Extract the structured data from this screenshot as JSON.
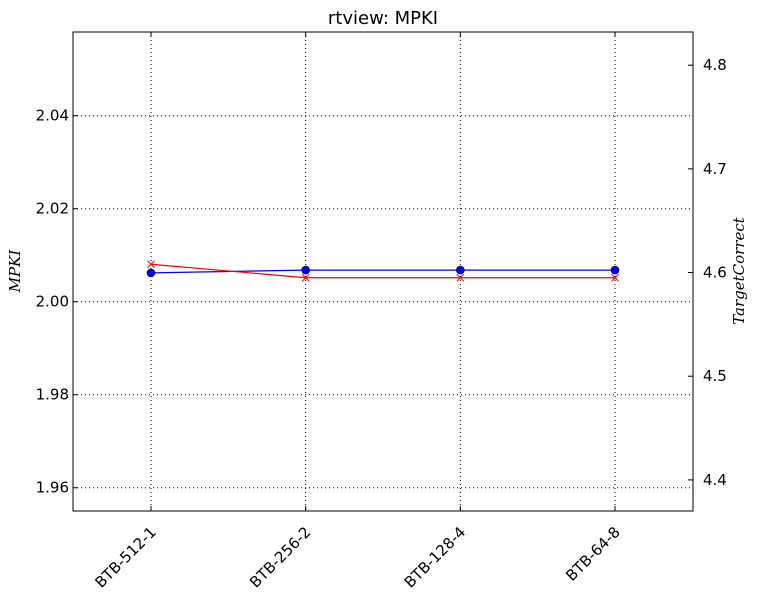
{
  "chart_data": {
    "type": "line",
    "title": "rtview: MPKI",
    "categories": [
      "BTB-512-1",
      "BTB-256-2",
      "BTB-128-4",
      "BTB-64-8"
    ],
    "ylabel": "MPKI",
    "y2label": "TargetCorrect",
    "ylim": [
      1.955,
      2.058
    ],
    "y2lim": [
      4.37,
      4.832
    ],
    "yticks": [
      "1.96",
      "1.98",
      "2.00",
      "2.02",
      "2.04"
    ],
    "y2ticks": [
      "4.4",
      "4.5",
      "4.6",
      "4.7",
      "4.8"
    ],
    "grid": true,
    "series": [
      {
        "axis": "left",
        "color": "#0000ff",
        "marker": "circle",
        "values": [
          2.0062,
          2.0068,
          2.0068,
          2.0068
        ]
      },
      {
        "axis": "right",
        "color": "#ff0000",
        "marker": "x",
        "values": [
          4.608,
          4.595,
          4.595,
          4.595
        ]
      }
    ]
  }
}
